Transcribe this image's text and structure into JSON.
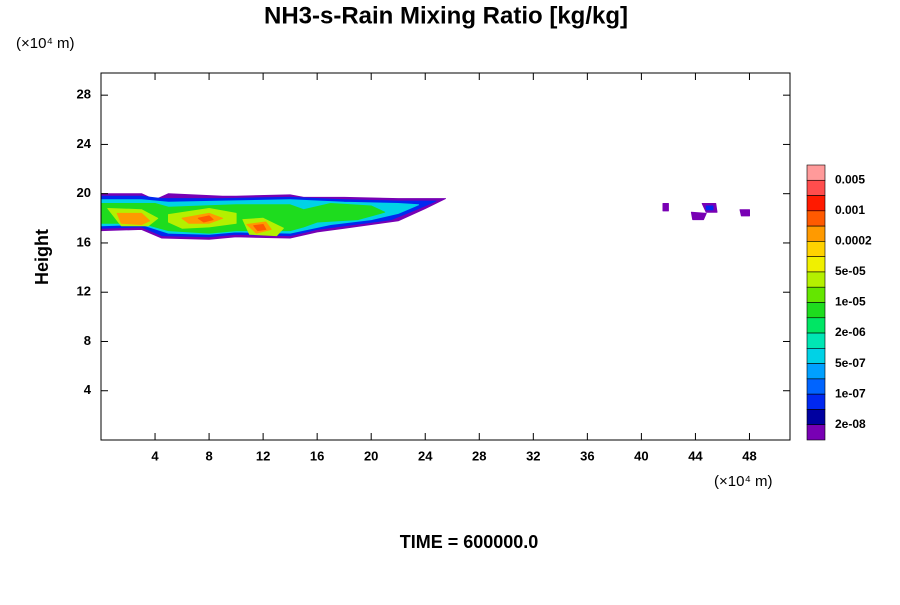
{
  "chart_data": {
    "type": "contour",
    "title": "NH3-s-Rain Mixing Ratio [kg/kg]",
    "y_label": "Height",
    "x_unit": "(×10⁴ m)",
    "y_unit": "(×10⁴ m)",
    "footer": "TIME = 600000.0",
    "xlim": [
      0,
      51
    ],
    "ylim": [
      0,
      29.8
    ],
    "xticks": [
      4,
      8,
      12,
      16,
      20,
      24,
      28,
      32,
      36,
      40,
      44,
      48
    ],
    "yticks": [
      4,
      8,
      12,
      16,
      20,
      24,
      28
    ],
    "colorbar": {
      "colors": [
        "#ff9a9a",
        "#ff4d4d",
        "#ff1a00",
        "#ff5a00",
        "#ff9a00",
        "#ffd200",
        "#f0f000",
        "#b4f000",
        "#64e600",
        "#1edc1e",
        "#00e664",
        "#00e6b4",
        "#00d2e6",
        "#00a0ff",
        "#0064ff",
        "#0028f0",
        "#0000a0",
        "#7800b4"
      ],
      "ticks": [
        {
          "value": 0.005,
          "label": "0.005"
        },
        {
          "value": 0.001,
          "label": "0.001"
        },
        {
          "value": 0.0002,
          "label": "0.0002"
        },
        {
          "value": 5e-05,
          "label": "5e-05"
        },
        {
          "value": 1e-05,
          "label": "1e-05"
        },
        {
          "value": 2e-06,
          "label": "2e-06"
        },
        {
          "value": 5e-07,
          "label": "5e-07"
        },
        {
          "value": 1e-07,
          "label": "1e-07"
        },
        {
          "value": 2e-08,
          "label": "2e-08"
        }
      ]
    },
    "contours": [
      {
        "level": 17,
        "x": [
          0,
          3,
          4,
          5,
          9,
          10,
          14,
          15,
          18,
          22,
          25.5,
          24,
          22,
          18,
          16,
          14,
          10,
          8,
          4.5,
          3,
          0
        ],
        "y": [
          20,
          20,
          19.5,
          20,
          19.8,
          19.8,
          19.9,
          19.7,
          19.7,
          19.6,
          19.6,
          18.8,
          17.8,
          17.2,
          16.9,
          16.4,
          16.5,
          16.3,
          16.4,
          17.1,
          17.0
        ]
      },
      {
        "level": 15,
        "x": [
          0,
          3,
          4.5,
          9,
          14,
          18,
          22,
          24.8,
          23.5,
          21.5,
          18,
          16,
          14,
          10,
          8,
          4.5,
          3,
          0
        ],
        "y": [
          19.8,
          19.8,
          19.6,
          19.6,
          19.7,
          19.5,
          19.4,
          19.4,
          18.8,
          17.9,
          17.4,
          17.1,
          16.6,
          16.7,
          16.5,
          16.6,
          17.3,
          17.2
        ]
      },
      {
        "level": 12,
        "x": [
          0,
          3,
          5,
          9,
          14,
          18,
          22,
          23.5,
          22,
          20,
          17,
          14,
          10,
          8,
          5,
          3,
          0
        ],
        "y": [
          19.5,
          19.5,
          19.3,
          19.4,
          19.5,
          19.3,
          19.2,
          19.1,
          18.4,
          17.9,
          17.5,
          16.8,
          16.9,
          16.7,
          16.8,
          17.5,
          17.4
        ]
      },
      {
        "level": 9,
        "x": [
          0,
          4,
          5,
          10,
          14,
          15,
          17,
          20,
          21,
          19,
          16,
          15,
          14,
          10,
          8,
          5,
          3,
          0
        ],
        "y": [
          19.2,
          19.2,
          18.9,
          19.1,
          19.1,
          18.7,
          19.2,
          19.0,
          18.5,
          17.9,
          17.7,
          17.3,
          17.0,
          17.0,
          16.8,
          17.0,
          17.6,
          17.6
        ]
      },
      {
        "level": 7,
        "x": [
          0.5,
          3,
          4.2,
          3.5,
          1.5
        ],
        "y": [
          18.8,
          18.7,
          18,
          17.4,
          17.4
        ]
      },
      {
        "level": 7,
        "x": [
          5,
          8,
          10,
          10,
          8,
          6,
          5
        ],
        "y": [
          18.3,
          18.8,
          18.4,
          17.6,
          17.3,
          17.2,
          17.7
        ]
      },
      {
        "level": 7,
        "x": [
          10.5,
          12,
          13.5,
          13,
          11
        ],
        "y": [
          17.9,
          18.0,
          17.2,
          16.6,
          16.7
        ]
      },
      {
        "level": 4,
        "x": [
          1.2,
          3,
          3.6,
          3,
          1.5
        ],
        "y": [
          18.4,
          18.4,
          17.8,
          17.5,
          17.6
        ]
      },
      {
        "level": 4,
        "x": [
          6,
          8,
          9,
          8,
          6.5
        ],
        "y": [
          18.0,
          18.4,
          18.0,
          17.6,
          17.6
        ]
      },
      {
        "level": 4,
        "x": [
          10.8,
          12.2,
          12.6,
          11.5
        ],
        "y": [
          17.5,
          17.7,
          17.1,
          16.8
        ]
      },
      {
        "level": 3,
        "x": [
          11.3,
          12,
          12.2,
          11.6
        ],
        "y": [
          17.4,
          17.5,
          17.1,
          17.0
        ]
      },
      {
        "level": 3,
        "x": [
          7.2,
          8,
          8.3,
          7.6
        ],
        "y": [
          18.0,
          18.2,
          17.9,
          17.7
        ]
      },
      {
        "level": 17,
        "x": [
          41.6,
          42,
          42,
          41.6
        ],
        "y": [
          19.2,
          19.2,
          18.6,
          18.6
        ]
      },
      {
        "level": 17,
        "x": [
          43.7,
          44.8,
          44.6,
          43.8
        ],
        "y": [
          18.5,
          18.4,
          17.9,
          17.9
        ]
      },
      {
        "level": 17,
        "x": [
          44.5,
          45.5,
          45.6,
          44.8
        ],
        "y": [
          19.2,
          19.2,
          18.5,
          18.5
        ]
      },
      {
        "level": 17,
        "x": [
          47.3,
          48,
          48,
          47.4
        ],
        "y": [
          18.7,
          18.7,
          18.2,
          18.2
        ]
      },
      {
        "level": 15,
        "x": [
          44.8,
          45.3,
          45.3,
          44.8
        ],
        "y": [
          19.0,
          19.0,
          18.7,
          18.7
        ]
      }
    ]
  }
}
